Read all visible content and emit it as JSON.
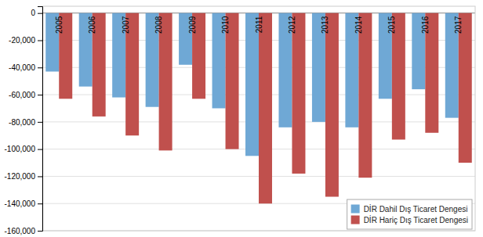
{
  "chart_data": {
    "type": "bar",
    "categories": [
      "2005",
      "2006",
      "2007",
      "2008",
      "2009",
      "2010",
      "2011",
      "2012",
      "2013",
      "2014",
      "2015",
      "2016",
      "2017"
    ],
    "series": [
      {
        "name": "DİR Dahil Dış Ticaret Dengesi",
        "color": "#6fa8d5",
        "values": [
          -43000,
          -54000,
          -62000,
          -69000,
          -38000,
          -70000,
          -105000,
          -84000,
          -80000,
          -84000,
          -63000,
          -56000,
          -77000
        ]
      },
      {
        "name": "DİR Hariç Dış Ticaret Dengesi",
        "color": "#c0504d",
        "values": [
          -63000,
          -76000,
          -90000,
          -101000,
          -63000,
          -100000,
          -140000,
          -118000,
          -135000,
          -121000,
          -93000,
          -88000,
          -110000
        ]
      }
    ],
    "ylim": [
      -160000,
      5000
    ],
    "yticks": [
      0,
      {
        "value": -20000,
        "label": "-20,000"
      },
      {
        "value": -40000,
        "label": "-40,000"
      },
      {
        "value": -60000,
        "label": "-60,000"
      },
      {
        "value": -80000,
        "label": "-80,000"
      },
      {
        "value": -100000,
        "label": "-100,000"
      },
      {
        "value": -120000,
        "label": "-120,000"
      },
      {
        "value": -140000,
        "label": "-140,000"
      },
      {
        "value": -160000,
        "label": "-160,000"
      }
    ],
    "grid": true,
    "legend": "lower right"
  }
}
